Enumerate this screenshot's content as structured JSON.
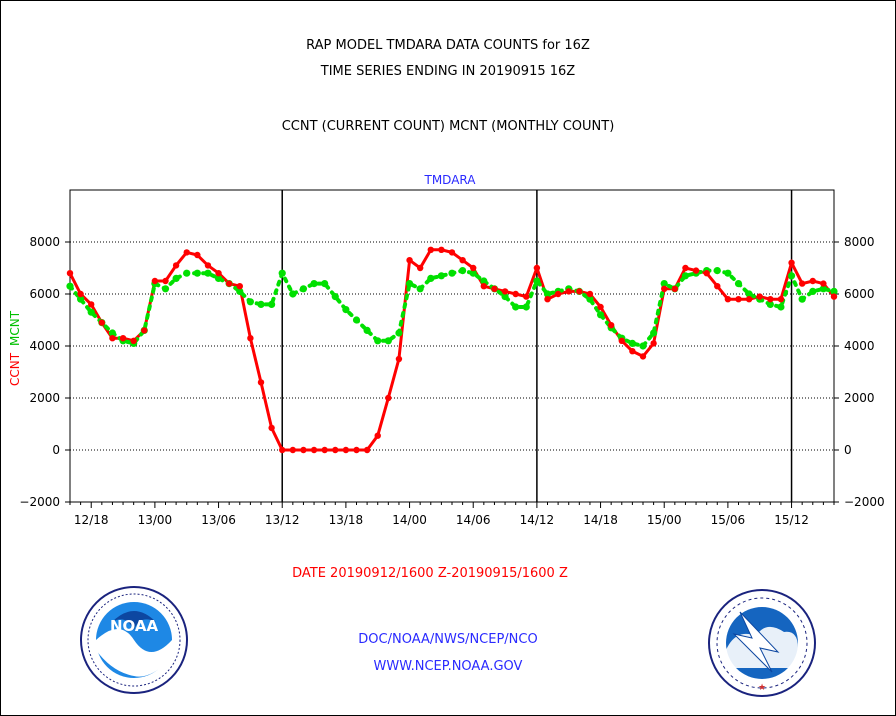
{
  "title_line1": "RAP MODEL TMDARA DATA COUNTS for 16Z",
  "title_line2": "TIME SERIES ENDING IN 20190915 16Z",
  "title_line3": "CCNT (CURRENT COUNT) MCNT (MONTHLY COUNT)",
  "panel_title": "TMDARA",
  "date_range": "DATE 20190912/1600 Z-20190915/1600 Z",
  "footer_line1": "DOC/NOAA/NWS/NCEP/NCO",
  "footer_line2": "WWW.NCEP.NOAA.GOV",
  "logo_left_text": "NOAA",
  "logo_left_ring": "NATIONAL OCEANIC AND ATMOSPHERIC ADMINISTRATION · U.S. DEPARTMENT OF COMMERCE",
  "logo_right_ring": "NATIONAL WEATHER SERVICE",
  "chart_data": {
    "type": "line",
    "ylabel_ccnt": "CCNT",
    "ylabel_mcnt": "MCNT",
    "ylim": [
      -2000,
      10000
    ],
    "yticks": [
      -2000,
      0,
      2000,
      4000,
      6000,
      8000
    ],
    "ytick_labels": [
      "−2000",
      "0",
      "2000",
      "4000",
      "6000",
      "8000"
    ],
    "xlim": [
      16,
      88
    ],
    "xticks": [
      18,
      24,
      30,
      36,
      42,
      48,
      54,
      60,
      66,
      72,
      78,
      84
    ],
    "xtick_labels": [
      "12/18",
      "13/00",
      "13/06",
      "13/12",
      "13/18",
      "14/00",
      "14/06",
      "14/12",
      "14/18",
      "15/00",
      "15/06",
      "15/12"
    ],
    "day_boundaries": [
      36,
      60,
      84
    ],
    "grid_y": [
      0,
      2000,
      4000,
      6000,
      8000
    ],
    "series": [
      {
        "name": "CCNT",
        "color": "#ff0000",
        "x": [
          16,
          17,
          18,
          19,
          20,
          21,
          22,
          23,
          24,
          25,
          26,
          27,
          28,
          29,
          30,
          31,
          32,
          33,
          34,
          35,
          36,
          37,
          38,
          39,
          40,
          41,
          42,
          43,
          44,
          45,
          46,
          47,
          48,
          49,
          50,
          51,
          52,
          53,
          54,
          55,
          56,
          57,
          58,
          59,
          60,
          61,
          62,
          63,
          64,
          65,
          66,
          67,
          68,
          69,
          70,
          71,
          72,
          73,
          74,
          75,
          76,
          77,
          78,
          79,
          80,
          81,
          82,
          83,
          84,
          85,
          86,
          87,
          88
        ],
        "values": [
          6800,
          6000,
          5600,
          4900,
          4300,
          4300,
          4200,
          4600,
          6500,
          6500,
          7100,
          7600,
          7500,
          7100,
          6800,
          6400,
          6300,
          4300,
          2600,
          850,
          0,
          0,
          0,
          0,
          0,
          0,
          0,
          0,
          0,
          550,
          2000,
          3500,
          7300,
          7000,
          7700,
          7700,
          7600,
          7300,
          7000,
          6300,
          6200,
          6100,
          6000,
          5900,
          7000,
          5800,
          6000,
          6100,
          6100,
          6000,
          5500,
          4800,
          4200,
          3800,
          3600,
          4100,
          6200,
          6200,
          7000,
          6900,
          6800,
          6300,
          5800,
          5800,
          5800,
          5900,
          5800,
          5800,
          7200,
          6400,
          6500,
          6400,
          5900
        ]
      },
      {
        "name": "MCNT",
        "color": "#00e000",
        "x": [
          16,
          17,
          18,
          19,
          20,
          21,
          22,
          23,
          24,
          25,
          26,
          27,
          28,
          29,
          30,
          31,
          32,
          33,
          34,
          35,
          36,
          37,
          38,
          39,
          40,
          41,
          42,
          43,
          44,
          45,
          46,
          47,
          48,
          49,
          50,
          51,
          52,
          53,
          54,
          55,
          56,
          57,
          58,
          59,
          60,
          61,
          62,
          63,
          64,
          65,
          66,
          67,
          68,
          69,
          70,
          71,
          72,
          73,
          74,
          75,
          76,
          77,
          78,
          79,
          80,
          81,
          82,
          83,
          84,
          85,
          86,
          87,
          88
        ],
        "values": [
          6300,
          5800,
          5300,
          4900,
          4500,
          4200,
          4100,
          4600,
          6400,
          6200,
          6600,
          6800,
          6800,
          6800,
          6600,
          6400,
          6100,
          5700,
          5600,
          5600,
          6800,
          6000,
          6200,
          6400,
          6400,
          5900,
          5400,
          5000,
          4600,
          4200,
          4200,
          4500,
          6400,
          6200,
          6600,
          6700,
          6800,
          6900,
          6800,
          6500,
          6200,
          5900,
          5500,
          5500,
          6500,
          6000,
          6100,
          6200,
          6100,
          5800,
          5200,
          4700,
          4300,
          4100,
          4000,
          4500,
          6400,
          6200,
          6700,
          6800,
          6900,
          6900,
          6800,
          6400,
          6000,
          5800,
          5600,
          5500,
          6700,
          5800,
          6100,
          6200,
          6100
        ]
      }
    ]
  }
}
